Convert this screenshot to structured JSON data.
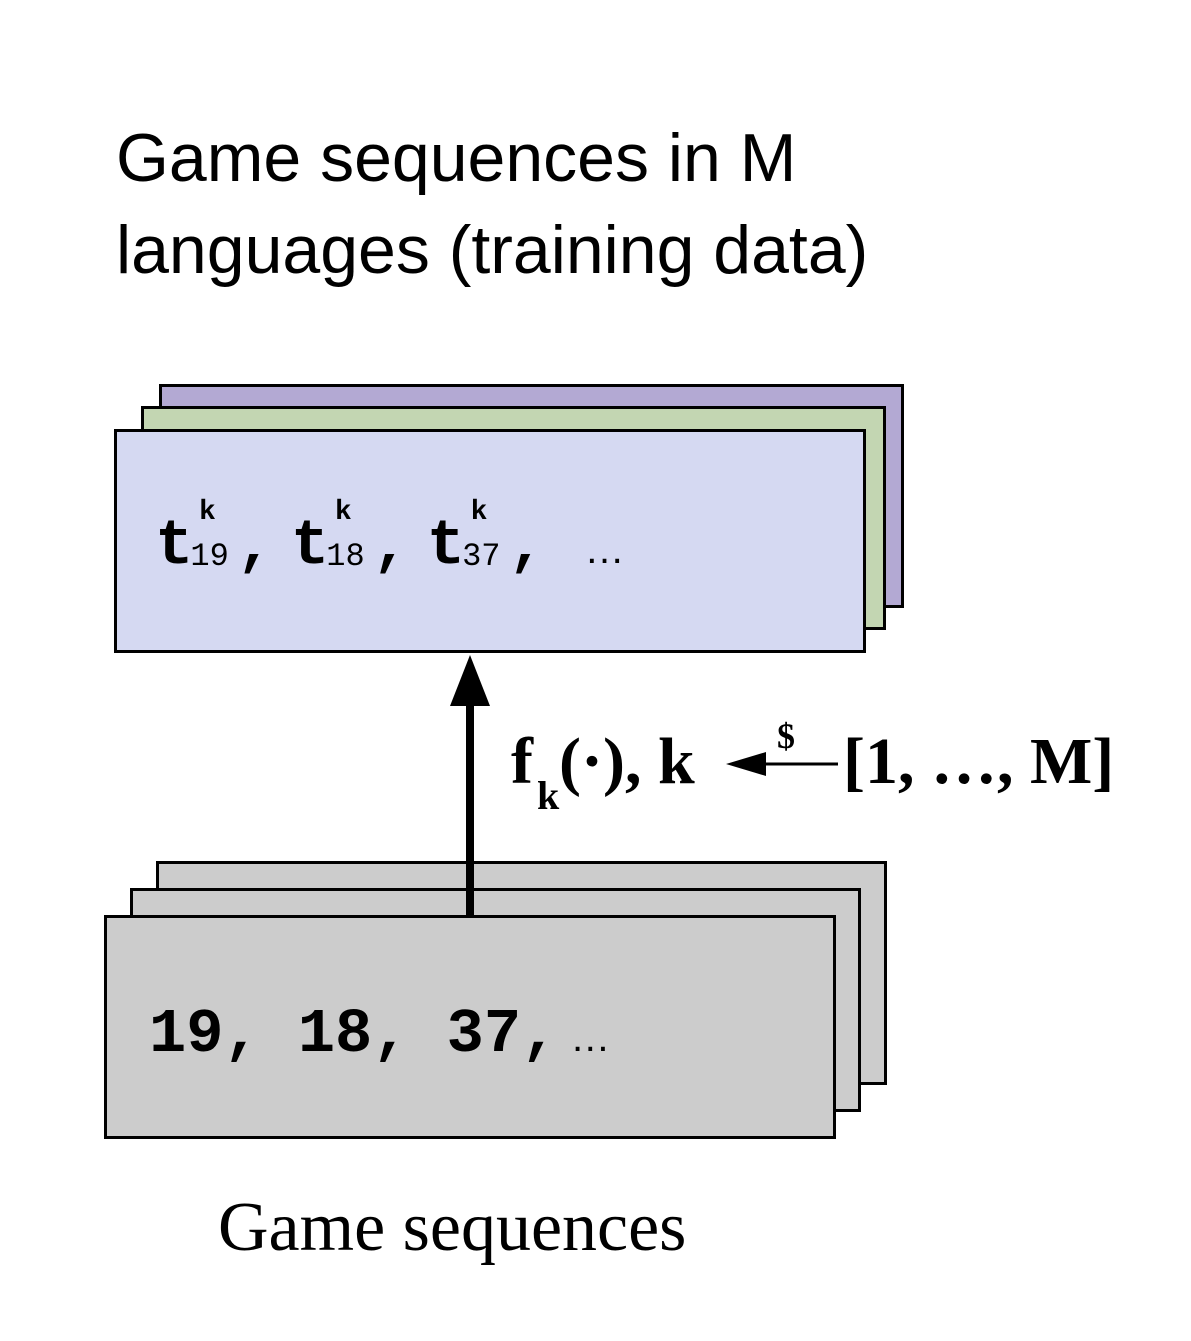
{
  "title": {
    "line1": "Game sequences in M",
    "line2": "languages (training data)"
  },
  "translated_sequence": {
    "base_symbol": "t",
    "superscript": "k",
    "tokens": [
      "19",
      "18",
      "37"
    ],
    "separator": ",",
    "ellipsis": "…"
  },
  "original_sequence": {
    "text": "19, 18, 37,",
    "ellipsis": "…"
  },
  "mapping": {
    "function": "f",
    "function_subscript": "k",
    "function_rest": "(·), k",
    "random_draw_symbol": "$",
    "range": "[1, …, M]"
  },
  "caption": "Game sequences",
  "colors": {
    "front_card": "#d5d9f2",
    "middle_card": "#c3d6b2",
    "back_card": "#b3a9d3",
    "game_card": "#cccccc",
    "stroke": "#000000"
  }
}
